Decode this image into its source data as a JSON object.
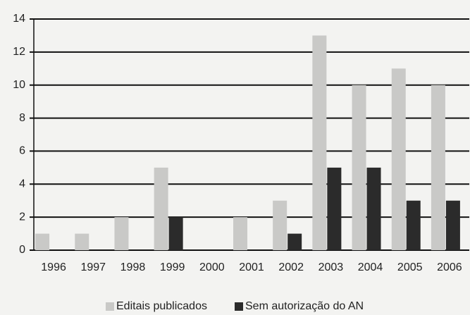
{
  "chart_data": {
    "type": "bar",
    "categories": [
      "1996",
      "1997",
      "1998",
      "1999",
      "2000",
      "2001",
      "2002",
      "2003",
      "2004",
      "2005",
      "2006"
    ],
    "series": [
      {
        "name": "Editais publicados",
        "color": "#c9c9c7",
        "values": [
          1,
          1,
          2,
          5,
          0,
          2,
          3,
          13,
          10,
          11,
          10
        ]
      },
      {
        "name": "Sem autorização do AN",
        "color": "#2b2b2b",
        "values": [
          0,
          0,
          0,
          2,
          0,
          0,
          1,
          5,
          5,
          3,
          3
        ]
      }
    ],
    "ylim": [
      0,
      14
    ],
    "yticks": [
      0,
      2,
      4,
      6,
      8,
      10,
      12,
      14
    ],
    "grid": true,
    "legend": "bottom"
  }
}
